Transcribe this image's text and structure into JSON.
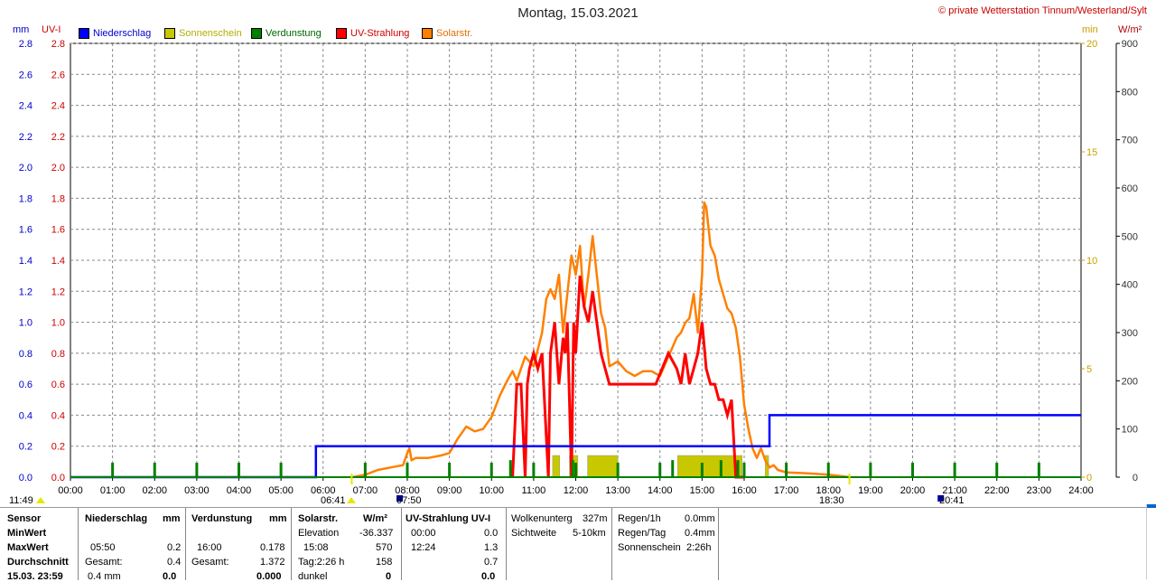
{
  "header": {
    "title": "Montag, 15.03.2021",
    "copyright": "© private Wetterstation Tinnum/Westerland/Sylt"
  },
  "units": {
    "left_mm": "mm",
    "left_uvi": "UV-I",
    "right_min": "min",
    "right_wm2": "W/m²"
  },
  "legend": [
    {
      "label": "Niederschlag",
      "color": "#0000ff"
    },
    {
      "label": "Sonnenschein",
      "color": "#c8c800"
    },
    {
      "label": "Verdunstung",
      "color": "#008000"
    },
    {
      "label": "UV-Strahlung",
      "color": "#ff0000"
    },
    {
      "label": "Solarstr.",
      "color": "#ff8000"
    }
  ],
  "markers": {
    "left_time": "11:49",
    "sunrise": "06:41",
    "dawn": "07:50",
    "sunset": "18:30",
    "dusk": "20:41"
  },
  "chart_data": {
    "type": "line",
    "title": "Montag, 15.03.2021",
    "x_unit": "hour",
    "x_range": [
      0,
      24
    ],
    "x_ticks": [
      "00:00",
      "01:00",
      "02:00",
      "03:00",
      "04:00",
      "05:00",
      "06:00",
      "07:00",
      "08:00",
      "09:00",
      "10:00",
      "11:00",
      "12:00",
      "13:00",
      "14:00",
      "15:00",
      "16:00",
      "17:00",
      "18:00",
      "19:00",
      "20:00",
      "21:00",
      "22:00",
      "23:00",
      "24:00"
    ],
    "axes": {
      "mm": {
        "range": [
          0,
          2.8
        ],
        "ticks": [
          "0.0",
          "0.2",
          "0.4",
          "0.6",
          "0.8",
          "1.0",
          "1.2",
          "1.4",
          "1.6",
          "1.8",
          "2.0",
          "2.2",
          "2.4",
          "2.6",
          "2.8"
        ]
      },
      "uvi": {
        "range": [
          0,
          2.8
        ],
        "ticks": [
          "0.0",
          "0.2",
          "0.4",
          "0.6",
          "0.8",
          "1.0",
          "1.2",
          "1.4",
          "1.6",
          "1.8",
          "2.0",
          "2.2",
          "2.4",
          "2.6",
          "2.8"
        ]
      },
      "min": {
        "range": [
          0,
          20
        ],
        "ticks": [
          "0",
          "5",
          "10",
          "15",
          "20"
        ]
      },
      "wm2": {
        "range": [
          0,
          900
        ],
        "ticks": [
          "0",
          "100",
          "200",
          "300",
          "400",
          "500",
          "600",
          "700",
          "800",
          "900"
        ]
      }
    },
    "grid": true,
    "series": [
      {
        "name": "Niederschlag",
        "axis": "mm",
        "color": "#0000ff",
        "step": true,
        "x": [
          0,
          5.83,
          5.83,
          16.6,
          16.6,
          24
        ],
        "y": [
          0,
          0,
          0.2,
          0.2,
          0.4,
          0.4
        ]
      },
      {
        "name": "Sonnenschein",
        "axis": "min",
        "color": "#c8c800",
        "kind": "bars",
        "bars": [
          {
            "from": 11.45,
            "to": 11.62,
            "value": 1
          },
          {
            "from": 11.85,
            "to": 12.05,
            "value": 1
          },
          {
            "from": 12.28,
            "to": 13.0,
            "value": 1
          },
          {
            "from": 14.42,
            "to": 15.95,
            "value": 1
          },
          {
            "from": 16.5,
            "to": 16.58,
            "value": 1
          }
        ]
      },
      {
        "name": "Verdunstung",
        "axis": "mm",
        "color": "#008000",
        "kind": "spikes",
        "x": [
          1.0,
          2.0,
          3.0,
          4.0,
          5.0,
          7.0,
          8.0,
          9.0,
          10.0,
          11.0,
          12.0,
          13.0,
          14.0,
          15.0,
          16.0,
          17.0,
          18.0,
          19.0,
          20.0,
          21.0,
          22.0,
          23.0,
          10.45,
          11.93,
          14.3,
          15.45,
          15.85
        ],
        "y": [
          0.005,
          0.005,
          0.005,
          0.005,
          0.005,
          0.005,
          0.005,
          0.005,
          0.005,
          0.005,
          0.005,
          0.005,
          0.005,
          0.005,
          0.005,
          0.005,
          0.005,
          0.005,
          0.005,
          0.005,
          0.005,
          0.005,
          0.04,
          0.04,
          0.04,
          0.04,
          0.04
        ]
      },
      {
        "name": "UV-Strahlung",
        "axis": "uvi",
        "color": "#ff0000",
        "x": [
          10.5,
          10.6,
          10.7,
          10.8,
          10.85,
          10.9,
          11.0,
          11.1,
          11.2,
          11.35,
          11.4,
          11.5,
          11.6,
          11.7,
          11.75,
          11.8,
          11.9,
          11.95,
          12.0,
          12.1,
          12.2,
          12.3,
          12.4,
          12.5,
          12.6,
          12.7,
          12.8,
          13.0,
          13.3,
          13.6,
          13.9,
          14.2,
          14.4,
          14.5,
          14.6,
          14.7,
          14.8,
          14.9,
          15.0,
          15.1,
          15.2,
          15.3,
          15.4,
          15.5,
          15.6,
          15.7,
          15.8,
          15.9,
          16.0
        ],
        "y": [
          0,
          0.6,
          0.6,
          0,
          0.6,
          0.7,
          0.8,
          0.7,
          0.8,
          0,
          0.8,
          1.0,
          0.6,
          0.9,
          0.8,
          1.0,
          0,
          1.0,
          0.8,
          1.3,
          1.1,
          1.0,
          1.2,
          1.0,
          0.8,
          0.7,
          0.6,
          0.6,
          0.6,
          0.6,
          0.6,
          0.8,
          0.7,
          0.6,
          0.8,
          0.6,
          0.7,
          0.8,
          1.0,
          0.7,
          0.6,
          0.6,
          0.5,
          0.5,
          0.4,
          0.5,
          0,
          0,
          0
        ],
        "min": {
          "time": "00:00",
          "value": 0.0
        },
        "max": {
          "time": "12:24",
          "value": 1.3
        },
        "avg": 0.7,
        "dark": 0.0
      },
      {
        "name": "Solarstr.",
        "axis": "wm2",
        "color": "#ff8000",
        "x": [
          6.7,
          7.0,
          7.3,
          7.6,
          7.9,
          8.0,
          8.05,
          8.1,
          8.2,
          8.5,
          8.8,
          9.0,
          9.2,
          9.4,
          9.6,
          9.8,
          10.0,
          10.2,
          10.4,
          10.5,
          10.6,
          10.8,
          11.0,
          11.2,
          11.3,
          11.4,
          11.5,
          11.6,
          11.7,
          11.8,
          11.9,
          12.0,
          12.1,
          12.2,
          12.3,
          12.4,
          12.5,
          12.6,
          12.7,
          12.8,
          13.0,
          13.2,
          13.4,
          13.6,
          13.8,
          14.0,
          14.2,
          14.4,
          14.5,
          14.6,
          14.7,
          14.8,
          14.9,
          15.0,
          15.05,
          15.1,
          15.2,
          15.3,
          15.4,
          15.5,
          15.6,
          15.7,
          15.8,
          15.9,
          16.0,
          16.1,
          16.2,
          16.3,
          16.4,
          16.5,
          16.6,
          16.7,
          16.8,
          17.0,
          17.5,
          18.0,
          18.3,
          18.5
        ],
        "y": [
          0,
          5,
          15,
          20,
          25,
          50,
          60,
          35,
          40,
          40,
          45,
          50,
          80,
          105,
          95,
          100,
          125,
          170,
          205,
          220,
          200,
          250,
          230,
          300,
          370,
          390,
          370,
          420,
          300,
          380,
          460,
          420,
          480,
          350,
          420,
          500,
          420,
          340,
          310,
          230,
          240,
          220,
          210,
          220,
          220,
          210,
          250,
          290,
          300,
          320,
          330,
          380,
          300,
          420,
          570,
          560,
          480,
          460,
          410,
          380,
          350,
          340,
          310,
          250,
          150,
          100,
          60,
          40,
          60,
          35,
          20,
          25,
          15,
          10,
          8,
          5,
          2,
          0
        ],
        "max": {
          "time": "15:08",
          "value": 570
        },
        "avg": 158,
        "elevation": -36.337,
        "dark": 0
      }
    ]
  },
  "table": {
    "row_labels": [
      "Sensor",
      "MinWert",
      "MaxWert",
      "Durchschnitt",
      "15.03. 23:59"
    ],
    "niederschlag": {
      "header": "Niederschlag",
      "unit": "mm",
      "max_time": "05:50",
      "max_value": "0.2",
      "total_label": "Gesamt:",
      "total_value": "0.4",
      "now_value": "0.4 mm",
      "now_bold": "0.0"
    },
    "verdunstung": {
      "header": "Verdunstung",
      "unit": "mm",
      "max_time": "16:00",
      "max_value": "0.178",
      "total_label": "Gesamt:",
      "total_value": "1.372",
      "now_bold": "0.000"
    },
    "solar": {
      "header": "Solarstr.",
      "unit": "W/m²",
      "elev_label": "Elevation",
      "elev_value": "-36.337",
      "max_time": "15:08",
      "max_value": "570",
      "day_label": "Tag:2:26 h",
      "day_value": "158",
      "dark_label": "dunkel",
      "dark_value": "0"
    },
    "uv": {
      "header": "UV-Strahlung UV-I",
      "min_time": "00:00",
      "min_value": "0.0",
      "max_time": "12:24",
      "max_value": "1.3",
      "avg_value": "0.7",
      "dark_value": "0.0"
    },
    "extra1": [
      {
        "label": "Wolkenunterg",
        "value": "327m"
      },
      {
        "label": "Sichtweite",
        "value": "5-10km"
      }
    ],
    "extra2": [
      {
        "label": "Regen/1h",
        "value": "0.0mm"
      },
      {
        "label": "Regen/Tag",
        "value": "0.4mm"
      },
      {
        "label": "Sonnenschein",
        "value": "2:26h"
      }
    ]
  }
}
